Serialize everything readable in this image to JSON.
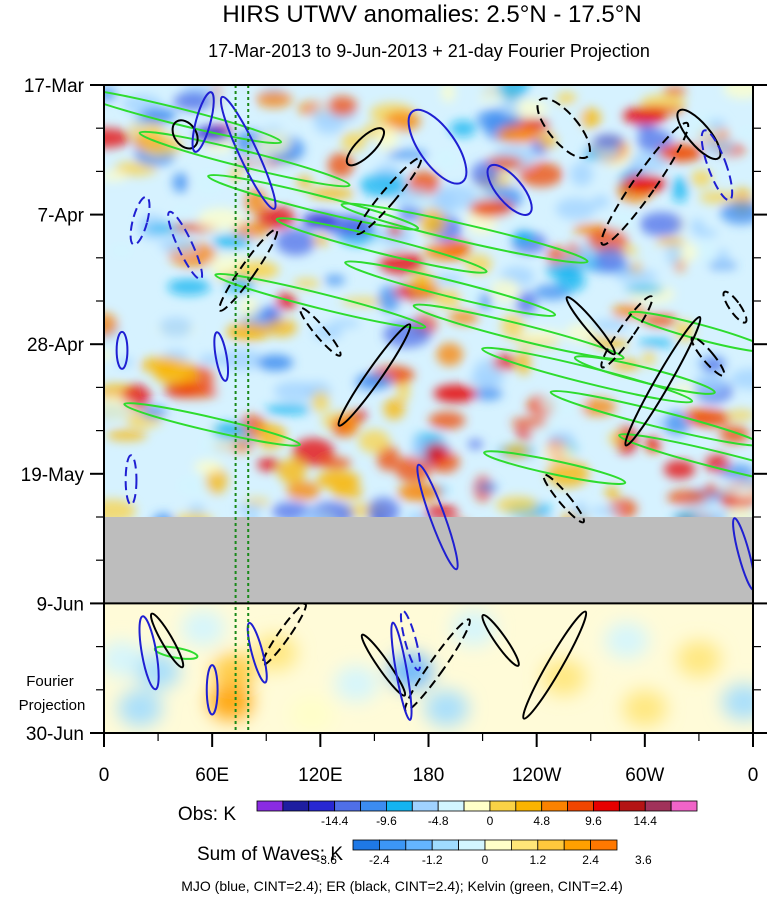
{
  "chart_data": {
    "type": "heatmap",
    "title": "HIRS UTWV anomalies: 2.5°N - 17.5°N",
    "subtitle": "17-Mar-2013 to 9-Jun-2013 + 21-day Fourier Projection",
    "x_axis": {
      "ticks": [
        {
          "lon": 0,
          "label": "0"
        },
        {
          "lon": 60,
          "label": "60E"
        },
        {
          "lon": 120,
          "label": "120E"
        },
        {
          "lon": 180,
          "label": "180"
        },
        {
          "lon": 240,
          "label": "120W"
        },
        {
          "lon": 300,
          "label": "60W"
        },
        {
          "lon": 360,
          "label": "0"
        }
      ],
      "range": [
        0,
        360
      ]
    },
    "y_axis": {
      "ticks": [
        {
          "day": 0,
          "label": "17-Mar"
        },
        {
          "day": 21,
          "label": "7-Apr"
        },
        {
          "day": 42,
          "label": "28-Apr"
        },
        {
          "day": 63,
          "label": "19-May"
        },
        {
          "day": 84,
          "label": "9-Jun"
        },
        {
          "day": 105,
          "label": "30-Jun"
        }
      ],
      "range": [
        0,
        105
      ],
      "inverted": true,
      "projection_label": [
        "Fourier",
        "Projection"
      ]
    },
    "missing_band_days": [
      70,
      84
    ],
    "projection_start_day": 84,
    "reference_lines_lon": [
      73,
      80
    ],
    "obs_colorbar": {
      "label": "Obs: K",
      "tick_labels": [
        "-14.4",
        "-9.6",
        "-4.8",
        "0",
        "4.8",
        "9.6",
        "14.4"
      ],
      "colors": [
        "#8A2BE2",
        "#1E1EA0",
        "#2828D2",
        "#4F6FE8",
        "#3C8CF0",
        "#14B4F0",
        "#A0D2FF",
        "#D2F5FF",
        "#FFFFC8",
        "#FAD246",
        "#FAB400",
        "#FA8200",
        "#F04600",
        "#E60000",
        "#B41414",
        "#A0325A",
        "#F064C8"
      ]
    },
    "waves_colorbar": {
      "label": "Sum of Waves: K",
      "tick_labels": [
        "-3.6",
        "-2.4",
        "-1.2",
        "0",
        "1.2",
        "2.4",
        "3.6"
      ],
      "colors": [
        "#1E78E6",
        "#3C96F5",
        "#64B4FF",
        "#A0DCFF",
        "#D2F5FF",
        "#FFFFC8",
        "#FFE678",
        "#FFC83C",
        "#FFA000",
        "#FF7800"
      ]
    },
    "footer": "MJO (blue, CINT=2.4); ER (black, CINT=2.4); Kelvin (green, CINT=2.4)",
    "legend_placement": "bottom"
  }
}
